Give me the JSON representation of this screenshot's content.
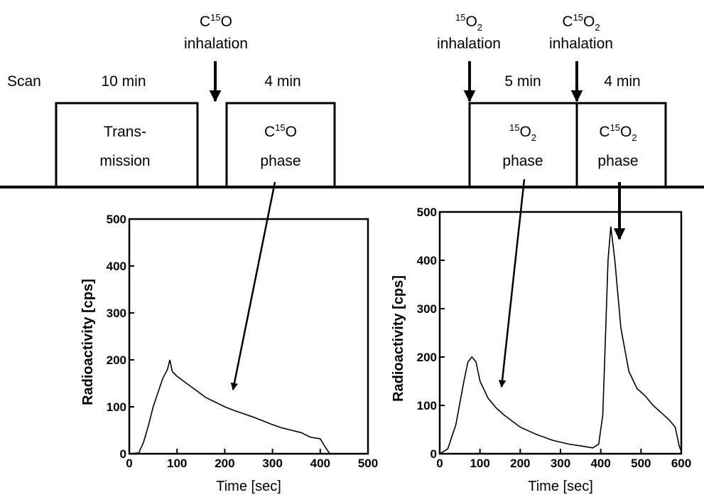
{
  "timeline": {
    "scan_label": "Scan",
    "events": [
      {
        "id": "c15o-inhalation",
        "line1_pre": "C",
        "line1_sup": "15",
        "line1_post": "O",
        "line1_sub": "",
        "line2": "inhalation"
      },
      {
        "id": "15o2-inhalation",
        "line1_pre": "",
        "line1_sup": "15",
        "line1_post": "O",
        "line1_sub": "2",
        "line2": "inhalation"
      },
      {
        "id": "c15o2-inhalation",
        "line1_pre": "C",
        "line1_sup": "15",
        "line1_post": "O",
        "line1_sub": "2",
        "line2": "inhalation"
      }
    ],
    "phases": [
      {
        "id": "transmission",
        "duration": "10 min",
        "line1": "Trans-",
        "line2": "mission"
      },
      {
        "id": "c15o",
        "duration": "4 min",
        "line1_pre": "C",
        "line1_sup": "15",
        "line1_post": "O",
        "line1_sub": "",
        "line2": "phase"
      },
      {
        "id": "15o2",
        "duration": "5 min",
        "line1_pre": "",
        "line1_sup": "15",
        "line1_post": "O",
        "line1_sub": "2",
        "line2": "phase"
      },
      {
        "id": "c15o2",
        "duration": "4 min",
        "line1_pre": "C",
        "line1_sup": "15",
        "line1_post": "O",
        "line1_sub": "2",
        "line2": "phase"
      }
    ]
  },
  "chart_data": [
    {
      "type": "line",
      "xlabel": "Time [sec]",
      "ylabel": "Radioactivity [cps]",
      "xlim": [
        0,
        500
      ],
      "ylim": [
        0,
        500
      ],
      "xticks": [
        "0",
        "100",
        "200",
        "300",
        "400",
        "500"
      ],
      "yticks": [
        "0",
        "100",
        "200",
        "300",
        "400",
        "500"
      ],
      "series": [
        {
          "x": [
            0,
            20,
            30,
            40,
            50,
            60,
            70,
            80,
            85,
            90,
            100,
            120,
            140,
            160,
            180,
            200,
            220,
            240,
            260,
            280,
            300,
            320,
            340,
            360,
            380,
            400,
            410,
            420
          ],
          "y": [
            0,
            2,
            25,
            60,
            100,
            130,
            160,
            180,
            200,
            175,
            165,
            150,
            135,
            120,
            110,
            100,
            92,
            85,
            78,
            70,
            62,
            55,
            50,
            45,
            35,
            32,
            15,
            0
          ]
        }
      ]
    },
    {
      "type": "line",
      "xlabel": "Time [sec]",
      "ylabel": "Radioactivity [cps]",
      "xlim": [
        0,
        600
      ],
      "ylim": [
        0,
        500
      ],
      "xticks": [
        "0",
        "100",
        "200",
        "300",
        "400",
        "500",
        "600"
      ],
      "yticks": [
        "0",
        "100",
        "200",
        "300",
        "400",
        "500"
      ],
      "series": [
        {
          "x": [
            0,
            20,
            40,
            60,
            70,
            80,
            90,
            100,
            120,
            140,
            160,
            200,
            240,
            280,
            320,
            360,
            380,
            395,
            405,
            412,
            418,
            425,
            435,
            450,
            470,
            490,
            510,
            530,
            550,
            570,
            585,
            595,
            600
          ],
          "y": [
            0,
            10,
            60,
            150,
            190,
            200,
            190,
            150,
            115,
            95,
            80,
            55,
            40,
            28,
            20,
            15,
            12,
            20,
            80,
            250,
            400,
            470,
            400,
            260,
            170,
            135,
            120,
            100,
            85,
            70,
            55,
            15,
            5
          ]
        }
      ]
    }
  ]
}
